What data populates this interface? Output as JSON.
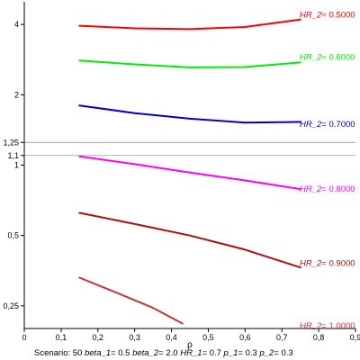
{
  "chart_data": {
    "type": "line",
    "title": "",
    "xlabel": "ρ",
    "ylabel": "",
    "y_scale": "log",
    "xlim": [
      0,
      0.9
    ],
    "ylim": [
      0.2,
      5.0
    ],
    "x_ticks": [
      "0",
      "0,1",
      "0,2",
      "0,3",
      "0,4",
      "0,5",
      "0,6",
      "0,7",
      "0,8",
      "0,9"
    ],
    "x_tick_values": [
      0,
      0.1,
      0.2,
      0.3,
      0.4,
      0.5,
      0.6,
      0.7,
      0.8,
      0.9
    ],
    "y_ticks": [
      "0,25",
      "0,5",
      "1",
      "1,1",
      "1,25",
      "2",
      "4"
    ],
    "y_tick_values": [
      0.25,
      0.5,
      1,
      1.1,
      1.25,
      2,
      4
    ],
    "reference_lines": [
      1.1,
      1.25
    ],
    "grid": false,
    "series": [
      {
        "name_key": "HR_2",
        "name_value": "= 0.5000",
        "color": "#ff0000",
        "x": [
          0.15,
          0.3,
          0.45,
          0.6,
          0.75
        ],
        "y": [
          3.95,
          3.85,
          3.82,
          3.9,
          4.2
        ]
      },
      {
        "name_key": "HR_2",
        "name_value": "= 0.6000",
        "color": "#00ee00",
        "x": [
          0.15,
          0.3,
          0.45,
          0.6,
          0.75
        ],
        "y": [
          2.8,
          2.7,
          2.62,
          2.63,
          2.75
        ]
      },
      {
        "name_key": "HR_2",
        "name_value": "= 0.7000",
        "color": "#0000cc",
        "x": [
          0.15,
          0.3,
          0.45,
          0.6,
          0.75
        ],
        "y": [
          1.8,
          1.67,
          1.58,
          1.52,
          1.53
        ]
      },
      {
        "name_key": "HR_2",
        "name_value": "= 0.8000",
        "color": "#ff00ff",
        "x": [
          0.15,
          0.3,
          0.45,
          0.6,
          0.75
        ],
        "y": [
          1.09,
          1.01,
          0.93,
          0.86,
          0.79
        ]
      },
      {
        "name_key": "HR_2",
        "name_value": "= 0.9000",
        "color": "#aa1111",
        "x": [
          0.15,
          0.3,
          0.45,
          0.6,
          0.75
        ],
        "y": [
          0.625,
          0.56,
          0.5,
          0.435,
          0.365
        ]
      },
      {
        "name_key": "HR_2",
        "name_value": "= 1.0000",
        "color": "#cc3333",
        "x": [
          0.15,
          0.25,
          0.35,
          0.43
        ],
        "y": [
          0.33,
          0.285,
          0.245,
          0.21
        ]
      }
    ],
    "label_y": [
      4.4,
      2.9,
      1.5,
      0.79,
      0.38,
      0.205
    ]
  },
  "footer": {
    "scenario": "Scenario: 50",
    "params": [
      {
        "key": "beta_1",
        "value": "= 0.5"
      },
      {
        "key": "beta_2",
        "value": "= 2.0"
      },
      {
        "key": "HR_1",
        "value": "= 0.7"
      },
      {
        "key": "p_1",
        "value": "= 0.3"
      },
      {
        "key": "p_2",
        "value": "= 0.3"
      }
    ]
  }
}
